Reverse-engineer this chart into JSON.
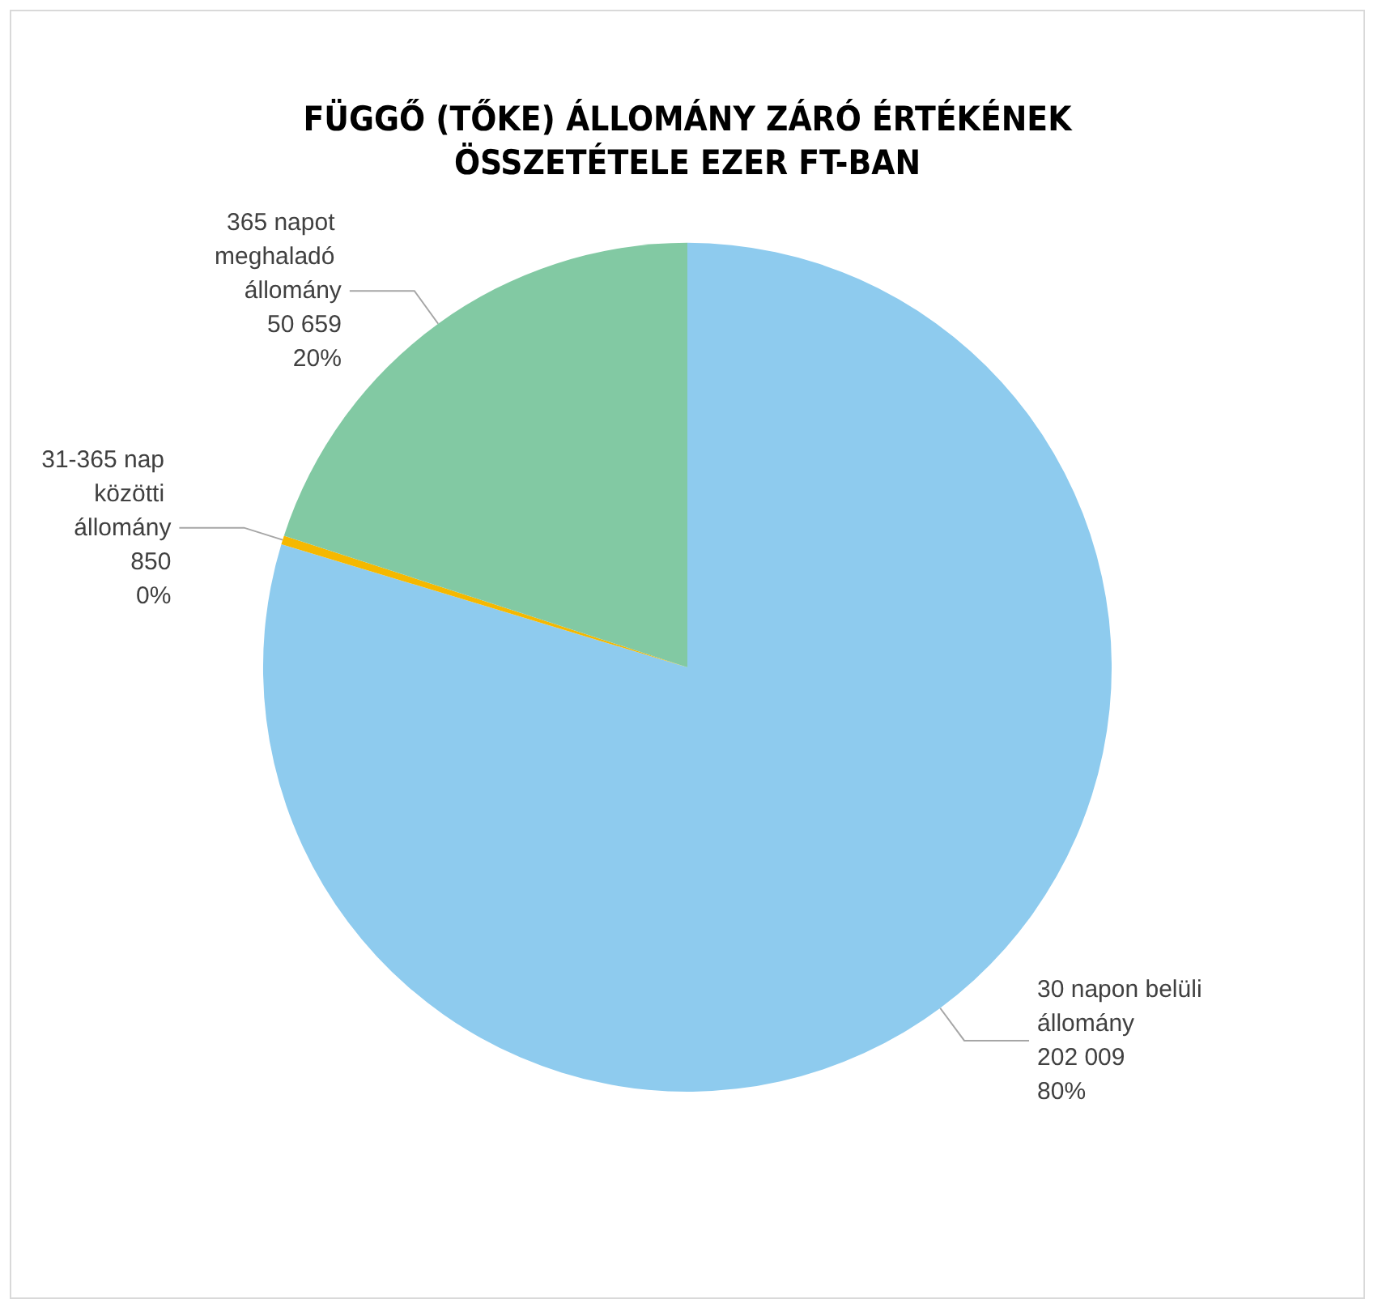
{
  "chart_data": {
    "type": "pie",
    "title": "FÜGGŐ (TŐKE) ÁLLOMÁNY ZÁRÓ ÉRTÉKÉNEK\nÖSSZETÉTELE EZER FT-BAN",
    "categories": [
      "30 napon belüli állomány",
      "31-365 nap közötti állomány",
      "365 napot meghaladó állomány"
    ],
    "values": [
      202009,
      850,
      50659
    ],
    "value_labels": [
      "202 009\n80%",
      "850\n0%",
      "50 659\n20%"
    ],
    "colors": [
      "#8ecbee",
      "#f5b800",
      "#82c9a3"
    ],
    "legend": false
  }
}
